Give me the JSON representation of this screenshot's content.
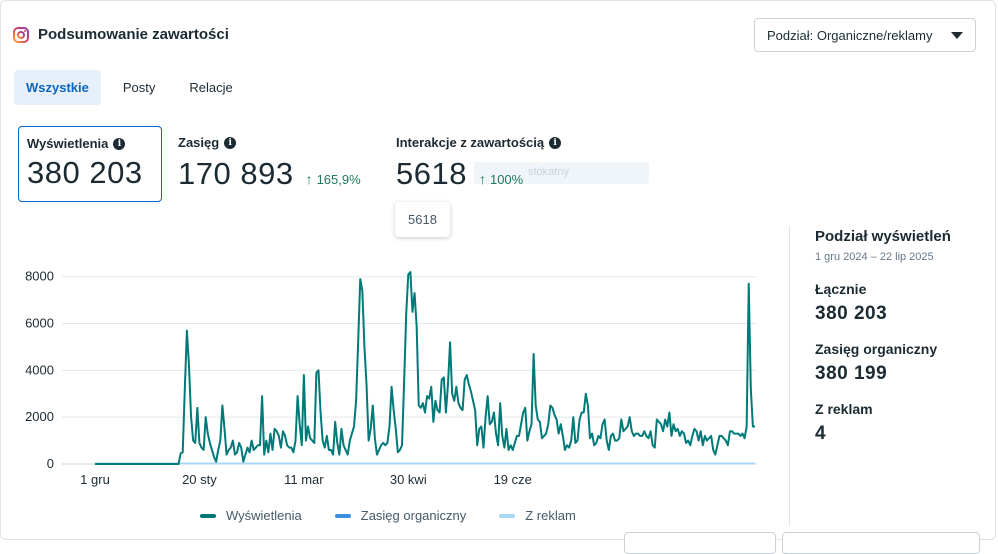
{
  "header": {
    "title": "Podsumowanie zawartości",
    "icon": "instagram-icon"
  },
  "breakdown": {
    "label": "Podział: Organiczne/reklamy"
  },
  "tabs": [
    {
      "label": "Wszystkie",
      "active": true
    },
    {
      "label": "Posty",
      "active": false
    },
    {
      "label": "Relacje",
      "active": false
    }
  ],
  "metrics": {
    "views": {
      "label": "Wyświetlenia",
      "value": "380 203"
    },
    "reach": {
      "label": "Zasięg",
      "value": "170 893",
      "change": "165,9%"
    },
    "interactions": {
      "label": "Interakcje z zawartością",
      "value": "5618",
      "change": "100%"
    }
  },
  "ghost_text": "stokatny",
  "tooltip": {
    "value": "5618"
  },
  "side_panel": {
    "title": "Podział wyświetleń",
    "date_range": "1 gru 2024 – 22 lip 2025",
    "total_label": "Łącznie",
    "total_value": "380 203",
    "organic_label": "Zasięg organiczny",
    "organic_value": "380 199",
    "ads_label": "Z reklam",
    "ads_value": "4"
  },
  "colors": {
    "accent": "#0a66c2",
    "views": "#007a78",
    "organic": "#3b8fdc",
    "ads": "#a9d8f2",
    "positive": "#1f7a5c"
  },
  "chart_data": {
    "type": "line",
    "x_ticks": [
      "1 gru",
      "20 sty",
      "11 mar",
      "30 kwi",
      "19 cze"
    ],
    "y_ticks": [
      "0",
      "2000",
      "4000",
      "6000",
      "8000"
    ],
    "ylim": [
      0,
      8800
    ],
    "series": [
      {
        "name": "Wyświetlenia",
        "color": "#007a78",
        "values": [
          0,
          0,
          0,
          0,
          0,
          0,
          0,
          0,
          0,
          0,
          0,
          0,
          0,
          0,
          0,
          0,
          0,
          0,
          0,
          0,
          0,
          0,
          0,
          0,
          0,
          0,
          0,
          0,
          0,
          0,
          0,
          0,
          0,
          0,
          0,
          0,
          0,
          0,
          0,
          0,
          0,
          450,
          500,
          3200,
          5700,
          4200,
          2000,
          1000,
          900,
          2400,
          900,
          700,
          600,
          2000,
          1300,
          900,
          600,
          300,
          100,
          600,
          1000,
          2500,
          1500,
          400,
          600,
          700,
          1000,
          400,
          500,
          900,
          700,
          100,
          400,
          700,
          500,
          1000,
          600,
          700,
          800,
          800,
          2900,
          400,
          1000,
          500,
          1300,
          600,
          1500,
          1400,
          1200,
          700,
          1400,
          1200,
          800,
          700,
          700,
          500,
          1000,
          2900,
          1700,
          800,
          3800,
          1000,
          1600,
          1100,
          1000,
          900,
          3900,
          4000,
          2200,
          1000,
          700,
          1200,
          600,
          600,
          400,
          1800,
          900,
          400,
          1500,
          800,
          600,
          400,
          1000,
          1300,
          1600,
          2700,
          5200,
          7900,
          7400,
          5000,
          3400,
          1000,
          1500,
          2500,
          1100,
          400,
          600,
          800,
          900,
          800,
          900,
          1600,
          3300,
          2300,
          1500,
          500,
          600,
          800,
          3500,
          6400,
          8100,
          8200,
          6500,
          7300,
          5900,
          2500,
          2400,
          2600,
          2200,
          2900,
          2800,
          3300,
          1800,
          2700,
          2300,
          2200,
          3600,
          3700,
          2200,
          3400,
          5200,
          3000,
          2700,
          3300,
          2600,
          2400,
          2300,
          3600,
          3800,
          3400,
          3100,
          2700,
          2300,
          800,
          1500,
          1600,
          700,
          2000,
          2900,
          1700,
          1800,
          2200,
          1300,
          800,
          2600,
          1200,
          700,
          1500,
          600,
          800,
          600,
          900,
          1200,
          1200,
          1700,
          2200,
          2400,
          1000,
          1400,
          1700,
          4700,
          2500,
          1900,
          1800,
          1100,
          1200,
          1300,
          1700,
          2500,
          2400,
          2100,
          1900,
          1300,
          1700,
          1200,
          600,
          800,
          700,
          1000,
          2000,
          900,
          1000,
          1900,
          2200,
          2200,
          3000,
          2500,
          1100,
          1300,
          800,
          900,
          1200,
          1100,
          1700,
          1900,
          1000,
          600,
          1200,
          1300,
          1000,
          1000,
          1100,
          1900,
          1400,
          1500,
          1600,
          2000,
          1400,
          1200,
          1300,
          1300,
          1200,
          1200,
          1400,
          1200,
          1100,
          1400,
          800,
          700,
          1900,
          1800,
          1700,
          1400,
          1900,
          1600,
          2200,
          1200,
          1700,
          1400,
          1500,
          1200,
          1400,
          1300,
          900,
          1000,
          800,
          1200,
          1500,
          1400,
          1000,
          1400,
          800,
          1200,
          1000,
          1100,
          1200,
          600,
          400,
          800,
          1200,
          1200,
          1100,
          1000,
          800,
          1400,
          1400,
          1300,
          1300,
          1300,
          1200,
          1300,
          1100,
          1600,
          7700,
          3200,
          1600,
          1600
        ]
      },
      {
        "name": "Zasięg organiczny",
        "color": "#3b8fdc"
      },
      {
        "name": "Z reklam",
        "color": "#a9d8f2"
      }
    ]
  }
}
